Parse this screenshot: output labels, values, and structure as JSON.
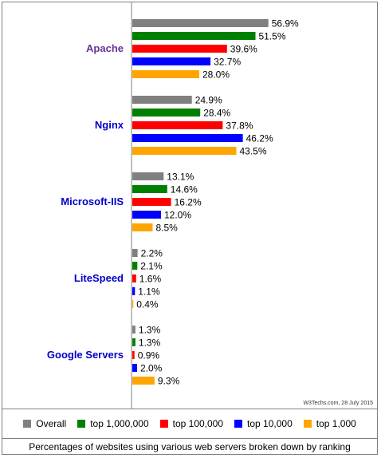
{
  "chart_data": {
    "type": "bar",
    "orientation": "horizontal",
    "categories": [
      "Apache",
      "Nginx",
      "Microsoft-IIS",
      "LiteSpeed",
      "Google Servers"
    ],
    "series": [
      {
        "name": "Overall",
        "color": "#808080",
        "values": [
          56.9,
          24.9,
          13.1,
          2.2,
          1.3
        ]
      },
      {
        "name": "top 1,000,000",
        "color": "#008000",
        "values": [
          51.5,
          28.4,
          14.6,
          2.1,
          1.3
        ]
      },
      {
        "name": "top 100,000",
        "color": "#ff0000",
        "values": [
          39.6,
          37.8,
          16.2,
          1.6,
          0.9
        ]
      },
      {
        "name": "top 10,000",
        "color": "#0000ff",
        "values": [
          32.7,
          46.2,
          12.0,
          1.1,
          2.0
        ]
      },
      {
        "name": "top 1,000",
        "color": "#ffa500",
        "values": [
          28.0,
          43.5,
          8.5,
          0.4,
          9.3
        ]
      }
    ],
    "value_labels": [
      [
        "56.9%",
        "51.5%",
        "39.6%",
        "32.7%",
        "28.0%"
      ],
      [
        "24.9%",
        "28.4%",
        "37.8%",
        "46.2%",
        "43.5%"
      ],
      [
        "13.1%",
        "14.6%",
        "16.2%",
        "12.0%",
        "8.5%"
      ],
      [
        "2.2%",
        "2.1%",
        "1.6%",
        "1.1%",
        "0.4%"
      ],
      [
        "1.3%",
        "1.3%",
        "0.9%",
        "2.0%",
        "9.3%"
      ]
    ],
    "category_colors": [
      "#663399",
      "#0000cc",
      "#0000cc",
      "#0000cc",
      "#0000cc"
    ],
    "xlim": [
      0,
      100
    ],
    "grid": false,
    "legend_position": "bottom",
    "credit": "W3Techs.com, 28 July 2015",
    "caption": "Percentages of websites using various web servers broken down by ranking"
  }
}
